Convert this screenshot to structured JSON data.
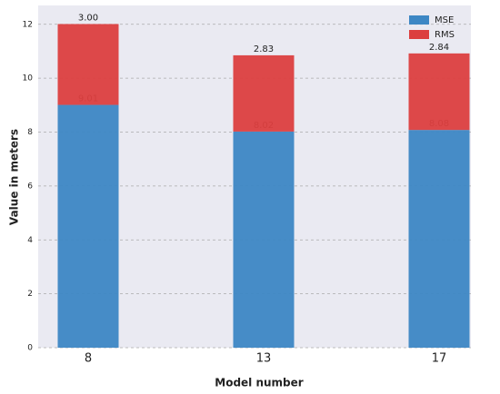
{
  "chart_data": {
    "type": "stacked_bar",
    "categories": [
      "8",
      "13",
      "17"
    ],
    "series": [
      {
        "name": "MSE",
        "color": "#3d87c4",
        "values": [
          9.01,
          8.02,
          8.08
        ],
        "value_labels": [
          "9.01",
          "8.02",
          "8.08"
        ]
      },
      {
        "name": "RMS",
        "color": "#dc3f3f",
        "values": [
          3.0,
          2.83,
          2.84
        ],
        "value_labels": [
          "3.00",
          "2.83",
          "2.84"
        ]
      }
    ],
    "xlabel": "Model number",
    "ylabel": "Value in meters",
    "ylim": [
      0,
      12.7
    ],
    "yticks": [
      0,
      2,
      4,
      6,
      8,
      10,
      12
    ],
    "grid": true,
    "legend": "upper right"
  }
}
